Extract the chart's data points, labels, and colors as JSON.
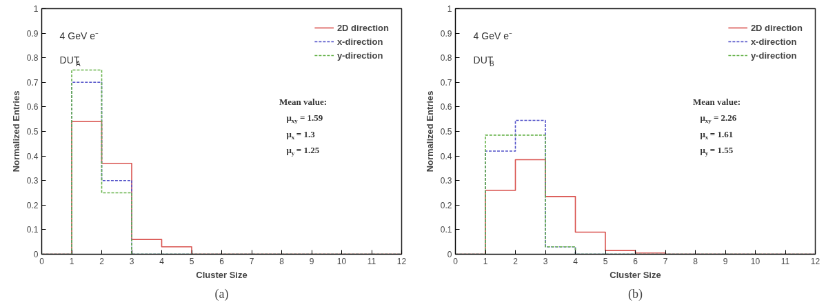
{
  "chart_data": [
    {
      "type": "histogram",
      "xlabel": "Cluster Size",
      "ylabel": "Normalized Entries",
      "bins": [
        0,
        1,
        2,
        3,
        4,
        5,
        6,
        7,
        8,
        9,
        10,
        11,
        12
      ],
      "series": [
        {
          "name": "2D direction",
          "color": "#d9534f",
          "line_style": "solid",
          "values": [
            0,
            0.54,
            0.37,
            0.06,
            0.03,
            0,
            0,
            0,
            0,
            0,
            0,
            0
          ]
        },
        {
          "name": "x-direction",
          "color": "#5050c8",
          "line_style": "dashed",
          "values": [
            0,
            0.7,
            0.3,
            0,
            0,
            0,
            0,
            0,
            0,
            0,
            0,
            0
          ]
        },
        {
          "name": "y-direction",
          "color": "#66b24a",
          "line_style": "dashed",
          "values": [
            0,
            0.75,
            0.25,
            0,
            0,
            0,
            0,
            0,
            0,
            0,
            0,
            0
          ]
        }
      ],
      "xlim": [
        0,
        12
      ],
      "xticks": [
        0,
        1,
        2,
        3,
        4,
        5,
        6,
        7,
        8,
        9,
        10,
        11,
        12
      ],
      "ylim": [
        0,
        1
      ],
      "yticks": [
        0,
        0.1,
        0.2,
        0.3,
        0.4,
        0.5,
        0.6,
        0.7,
        0.8,
        0.9,
        1
      ],
      "grid": false,
      "legend": "top right",
      "annotations": [
        "4 GeV e⁻",
        "DUT$_{A}$",
        "Mean value:",
        "μ$_{xy}$ = 1.59",
        "μ$_{x}$ = 1.3",
        "μ$_{y}$ = 1.25",
        "(a)"
      ]
    },
    {
      "type": "histogram",
      "xlabel": "Cluster Size",
      "ylabel": "Normalized Entries",
      "bins": [
        0,
        1,
        2,
        3,
        4,
        5,
        6,
        7,
        8,
        9,
        10,
        11,
        12
      ],
      "series": [
        {
          "name": "2D direction",
          "color": "#d9534f",
          "line_style": "solid",
          "values": [
            0,
            0.26,
            0.385,
            0.235,
            0.09,
            0.015,
            0.005,
            0,
            0,
            0,
            0,
            0
          ]
        },
        {
          "name": "x-direction",
          "color": "#5050c8",
          "line_style": "dashed",
          "values": [
            0,
            0.42,
            0.545,
            0.03,
            0,
            0,
            0,
            0,
            0,
            0,
            0,
            0
          ]
        },
        {
          "name": "y-direction",
          "color": "#66b24a",
          "line_style": "dashed",
          "values": [
            0,
            0.485,
            0.485,
            0.03,
            0,
            0,
            0,
            0,
            0,
            0,
            0,
            0
          ]
        }
      ],
      "xlim": [
        0,
        12
      ],
      "xticks": [
        0,
        1,
        2,
        3,
        4,
        5,
        6,
        7,
        8,
        9,
        10,
        11,
        12
      ],
      "ylim": [
        0,
        1
      ],
      "yticks": [
        0,
        0.1,
        0.2,
        0.3,
        0.4,
        0.5,
        0.6,
        0.7,
        0.8,
        0.9,
        1
      ],
      "grid": false,
      "legend": "top right",
      "annotations": [
        "4 GeV e⁻",
        "DUT$_{B}$",
        "Mean value:",
        "μ$_{xy}$ = 2.26",
        "μ$_{x}$ = 1.61",
        "μ$_{y}$ = 1.55",
        "(b)"
      ]
    }
  ]
}
